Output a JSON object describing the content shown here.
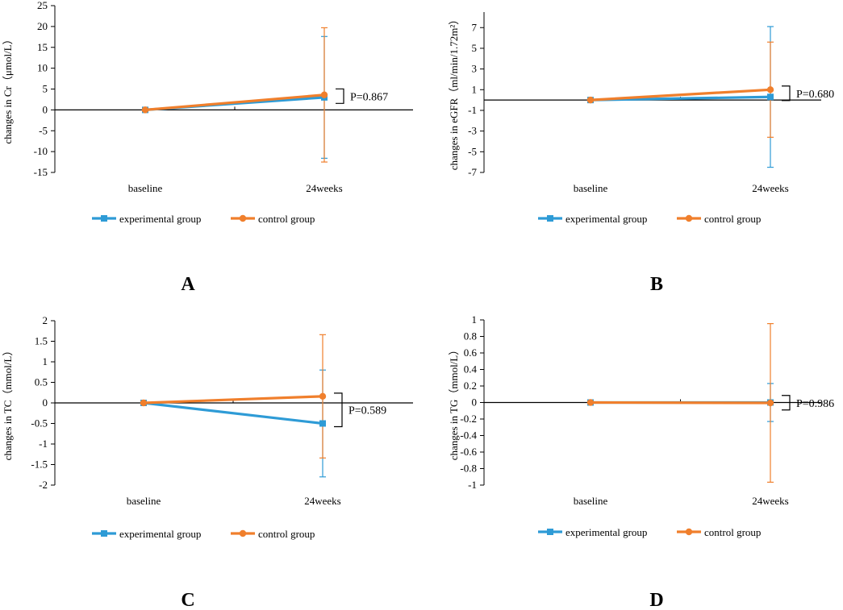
{
  "figure": {
    "colors": {
      "experimental": "#2e9bd6",
      "control": "#f07f2c",
      "axis": "#000000"
    },
    "series_names": [
      "experimental group",
      "control group"
    ]
  },
  "chart_data": [
    {
      "panel": "A",
      "type": "line",
      "title": "",
      "xlabel": "",
      "ylabel": "changes in Cr（μmol/L）",
      "categories": [
        "baseline",
        "24weeks"
      ],
      "ylim": [
        -15,
        25
      ],
      "yticks": [
        -15,
        -10,
        -5,
        0,
        5,
        10,
        15,
        20,
        25
      ],
      "ytick_labels": [
        "-15",
        "-10",
        "-5",
        "0",
        "5",
        "10",
        "15",
        "20",
        "25"
      ],
      "series": [
        {
          "name": "experimental group",
          "marker": "square",
          "values": [
            0,
            3.0
          ],
          "error": [
            0,
            14.6
          ]
        },
        {
          "name": "control group",
          "marker": "circle",
          "values": [
            0,
            3.6
          ],
          "error": [
            0,
            16.1
          ]
        }
      ],
      "annotation": "P=0.867"
    },
    {
      "panel": "B",
      "type": "line",
      "title": "",
      "xlabel": "",
      "ylabel": "changes in eGFR（ml/min/1.72m²）",
      "categories": [
        "baseline",
        "24weeks"
      ],
      "ylim": [
        -7,
        8.5
      ],
      "yticks": [
        -7,
        -5,
        -3,
        -1,
        1,
        3,
        5,
        7
      ],
      "ytick_labels": [
        "-7",
        "-5",
        "-3",
        "-1",
        "1",
        "3",
        "5",
        "7"
      ],
      "series": [
        {
          "name": "experimental group",
          "marker": "square",
          "values": [
            0,
            0.3
          ],
          "error": [
            0,
            6.8
          ]
        },
        {
          "name": "control group",
          "marker": "circle",
          "values": [
            0,
            1.0
          ],
          "error": [
            0,
            4.6
          ]
        }
      ],
      "annotation": "P=0.680"
    },
    {
      "panel": "C",
      "type": "line",
      "title": "",
      "xlabel": "",
      "ylabel": "changes in TC（mmol/L）",
      "categories": [
        "baseline",
        "24weeks"
      ],
      "ylim": [
        -2,
        2
      ],
      "yticks": [
        -2,
        -1.5,
        -1,
        -0.5,
        0,
        0.5,
        1,
        1.5,
        2
      ],
      "ytick_labels": [
        "-2",
        "-1.5",
        "-1",
        "-0.5",
        "0",
        "0.5",
        "1",
        "1.5",
        "2"
      ],
      "series": [
        {
          "name": "experimental group",
          "marker": "square",
          "values": [
            0,
            -0.5
          ],
          "error": [
            0,
            1.3
          ]
        },
        {
          "name": "control group",
          "marker": "circle",
          "values": [
            0,
            0.16
          ],
          "error": [
            0,
            1.5
          ]
        }
      ],
      "annotation": "P=0.589"
    },
    {
      "panel": "D",
      "type": "line",
      "title": "",
      "xlabel": "",
      "ylabel": "changes in TG（mmol/L）",
      "categories": [
        "baseline",
        "24weeks"
      ],
      "ylim": [
        -1,
        1
      ],
      "yticks": [
        -1,
        -0.8,
        -0.6,
        -0.4,
        -0.2,
        0,
        0.2,
        0.4,
        0.6,
        0.8,
        1
      ],
      "ytick_labels": [
        "-1",
        "-0.8",
        "-0.6",
        "-0.4",
        "-0.2",
        "0",
        "0.2",
        "0.4",
        "0.6",
        "0.8",
        "1"
      ],
      "series": [
        {
          "name": "experimental group",
          "marker": "square",
          "values": [
            0,
            0.0
          ],
          "error": [
            0,
            0.23
          ]
        },
        {
          "name": "control group",
          "marker": "circle",
          "values": [
            0,
            -0.005
          ],
          "error": [
            0,
            0.96
          ]
        }
      ],
      "annotation": "P=0.986"
    }
  ]
}
